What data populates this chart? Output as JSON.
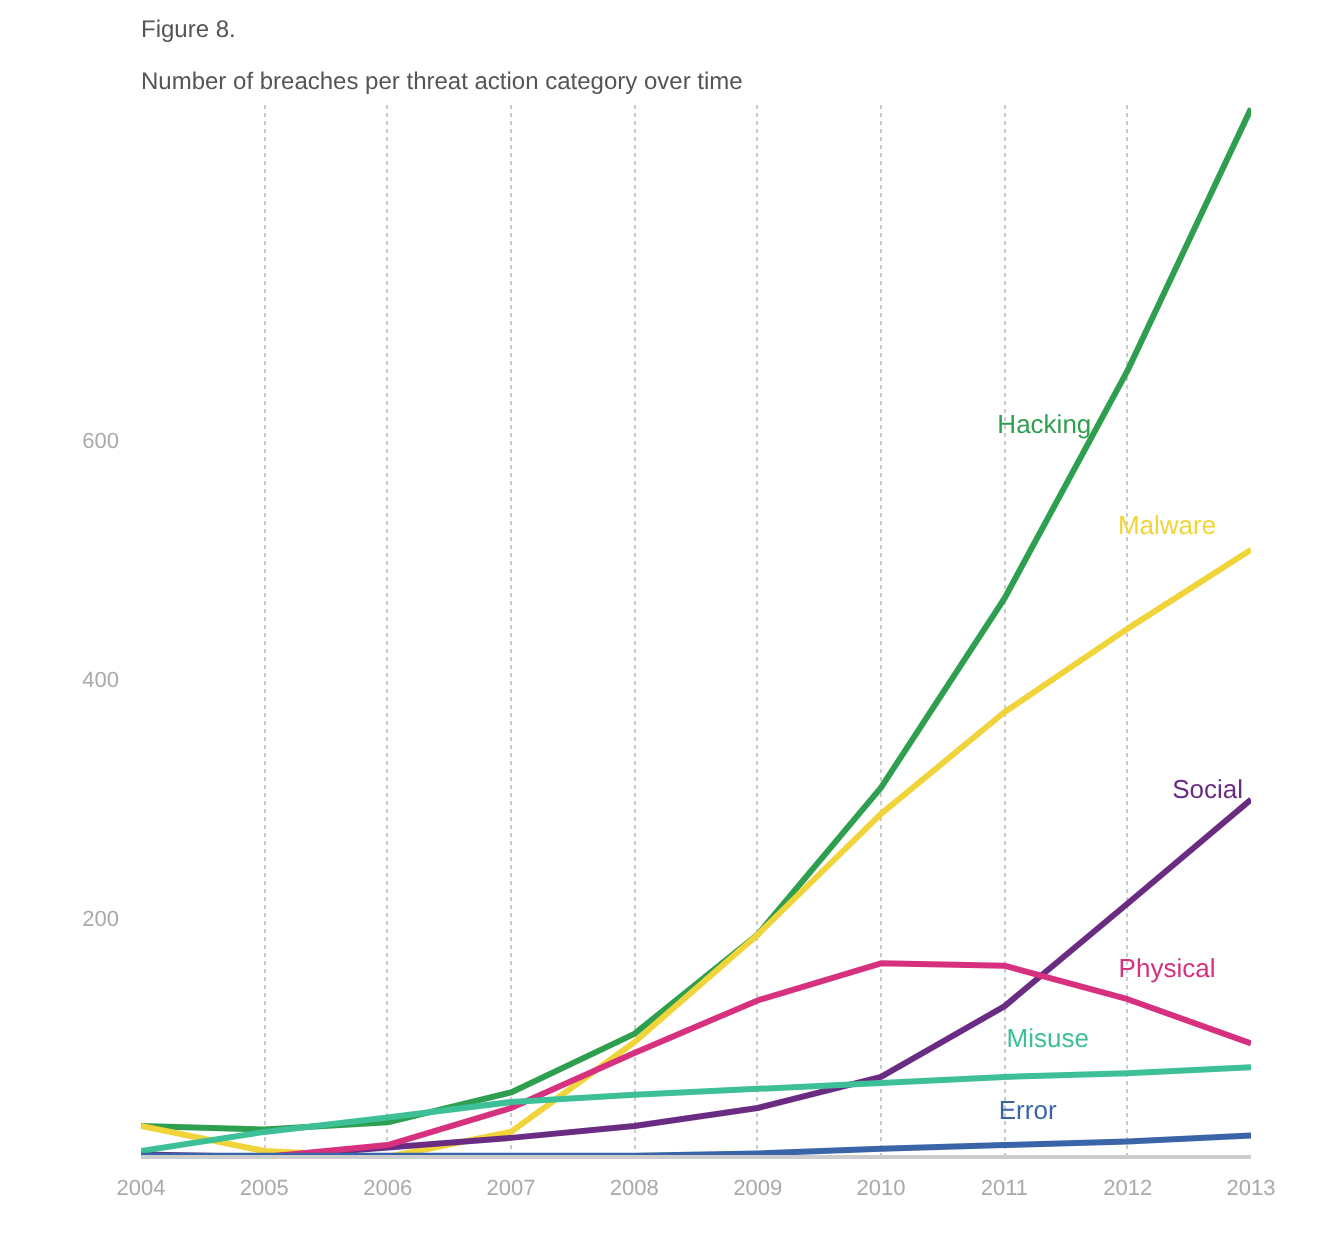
{
  "chart_data": {
    "type": "line",
    "title": "Figure 8.",
    "subtitle": "Number of breaches per threat action category over time",
    "x": [
      2004,
      2005,
      2006,
      2007,
      2008,
      2009,
      2010,
      2011,
      2012,
      2013
    ],
    "xlim": [
      2004,
      2013
    ],
    "xticks": [
      2004,
      2005,
      2006,
      2007,
      2008,
      2009,
      2010,
      2011,
      2012,
      2013
    ],
    "ylim": [
      0,
      880
    ],
    "yticks": [
      200,
      400,
      600
    ],
    "grid": "x",
    "series": [
      {
        "name": "Hacking",
        "color": "#2e9e4f",
        "values": [
          26,
          23,
          29,
          54,
          103,
          186,
          309,
          467,
          658,
          877
        ]
      },
      {
        "name": "Malware",
        "color": "#f0d43a",
        "values": [
          26,
          5,
          0,
          21,
          96,
          186,
          287,
          372,
          442,
          508
        ]
      },
      {
        "name": "Social",
        "color": "#6a2c82",
        "values": [
          2,
          0,
          8,
          16,
          26,
          41,
          67,
          126,
          212,
          299
        ]
      },
      {
        "name": "Physical",
        "color": "#d6307e",
        "x": [
          2005,
          2006,
          2007,
          2008,
          2009,
          2010,
          2011,
          2012,
          2013
        ],
        "values": [
          0,
          10,
          41,
          87,
          131,
          162,
          160,
          132,
          95
        ]
      },
      {
        "name": "Misuse",
        "color": "#3dbf97",
        "values": [
          5,
          21,
          33,
          46,
          52,
          57,
          62,
          67,
          70,
          75
        ]
      },
      {
        "name": "Error",
        "color": "#3a64a8",
        "values": [
          1,
          1,
          1,
          1,
          1,
          3,
          7,
          10,
          13,
          18
        ]
      }
    ]
  }
}
